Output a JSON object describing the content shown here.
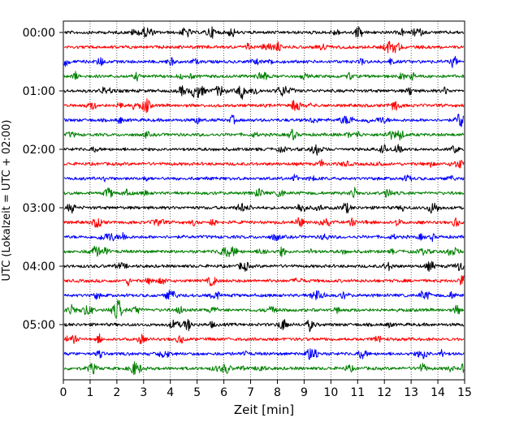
{
  "chart_data": {
    "type": "line",
    "title": "",
    "xlabel": "Zeit  [min]",
    "ylabel": "UTC (Lokalzeit = UTC + 02:00)",
    "xlim": [
      0,
      15
    ],
    "x_ticks": [
      "0",
      "1",
      "2",
      "3",
      "4",
      "5",
      "6",
      "7",
      "8",
      "9",
      "10",
      "11",
      "12",
      "13",
      "14",
      "15"
    ],
    "y_ticks": [
      "00:00",
      "01:00",
      "02:00",
      "03:00",
      "04:00",
      "05:00"
    ],
    "grid": "vertical dotted at each minute",
    "trace_interval_min": 15,
    "trace_colors": [
      "#000000",
      "#ff0000",
      "#0000ff",
      "#008000"
    ],
    "series": [
      {
        "start": "00:00",
        "color": "#000000"
      },
      {
        "start": "00:15",
        "color": "#ff0000"
      },
      {
        "start": "00:30",
        "color": "#0000ff"
      },
      {
        "start": "00:45",
        "color": "#008000"
      },
      {
        "start": "01:00",
        "color": "#000000"
      },
      {
        "start": "01:15",
        "color": "#ff0000"
      },
      {
        "start": "01:30",
        "color": "#0000ff"
      },
      {
        "start": "01:45",
        "color": "#008000"
      },
      {
        "start": "02:00",
        "color": "#000000"
      },
      {
        "start": "02:15",
        "color": "#ff0000"
      },
      {
        "start": "02:30",
        "color": "#0000ff"
      },
      {
        "start": "02:45",
        "color": "#008000"
      },
      {
        "start": "03:00",
        "color": "#000000"
      },
      {
        "start": "03:15",
        "color": "#ff0000"
      },
      {
        "start": "03:30",
        "color": "#0000ff"
      },
      {
        "start": "03:45",
        "color": "#008000"
      },
      {
        "start": "04:00",
        "color": "#000000"
      },
      {
        "start": "04:15",
        "color": "#ff0000"
      },
      {
        "start": "04:30",
        "color": "#0000ff"
      },
      {
        "start": "04:45",
        "color": "#008000"
      },
      {
        "start": "05:00",
        "color": "#000000"
      },
      {
        "start": "05:15",
        "color": "#ff0000"
      },
      {
        "start": "05:30",
        "color": "#0000ff"
      },
      {
        "start": "05:45",
        "color": "#008000"
      }
    ]
  }
}
